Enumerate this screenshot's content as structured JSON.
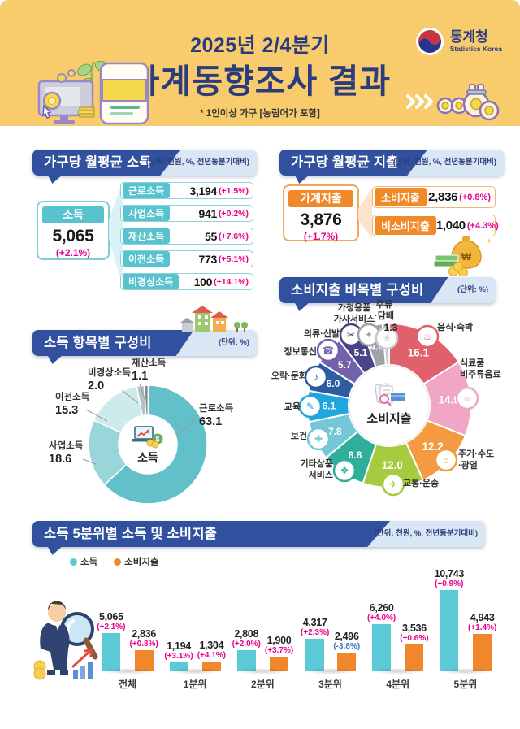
{
  "header": {
    "quarter": "2025년 2/4분기",
    "title": "가계동향조사 결과",
    "note": "* 1인이상 가구 [농림어가 포함]",
    "agency_name": "통계청",
    "agency_name_en": "Statistics Korea"
  },
  "income_section": {
    "title": "가구당 월평균 소득",
    "unit": "(단위: 천원, %, 전년동분기대비)",
    "total": {
      "label": "소득",
      "value": "5,065",
      "change": "(+2.1%)"
    },
    "items": [
      {
        "label": "근로소득",
        "value": "3,194",
        "change": "(+1.5%)"
      },
      {
        "label": "사업소득",
        "value": "941",
        "change": "(+0.2%)"
      },
      {
        "label": "재산소득",
        "value": "55",
        "change": "(+7.6%)"
      },
      {
        "label": "이전소득",
        "value": "773",
        "change": "(+5.1%)"
      },
      {
        "label": "비경상소득",
        "value": "100",
        "change": "(+14.1%)"
      }
    ]
  },
  "expenditure_section": {
    "title": "가구당 월평균 지출",
    "unit": "(단위: 천원, %, 전년동분기대비)",
    "total": {
      "label": "가계지출",
      "value": "3,876",
      "change": "(+1.7%)"
    },
    "items": [
      {
        "label": "소비지출",
        "value": "2,836",
        "change": "(+0.8%)"
      },
      {
        "label": "비소비지출",
        "value": "1,040",
        "change": "(+4.3%)"
      }
    ]
  },
  "chart_data": [
    {
      "id": "income-composition",
      "type": "pie",
      "title": "소득 항목별 구성비",
      "unit": "(단위: %)",
      "center_label": "소득",
      "categories": [
        "근로소득",
        "사업소득",
        "이전소득",
        "비경상소득",
        "재산소득"
      ],
      "values": [
        63.1,
        18.6,
        15.3,
        2.0,
        1.1
      ],
      "colors": [
        "#62C0CA",
        "#99D6DA",
        "#CDEBEC",
        "#B9BFC6",
        "#848B93"
      ],
      "legend_position": "labels-outside"
    },
    {
      "id": "expenditure-composition",
      "type": "pie",
      "title": "소비지출 비목별 구성비",
      "unit": "(단위: %)",
      "center_label": "소비지출",
      "categories": [
        "음식·숙박",
        "식료품·비주류음료",
        "주거·수도·광열",
        "교통·운송",
        "기타상품·서비스",
        "보건",
        "교육",
        "오락·문화",
        "정보통신",
        "의류·신발",
        "가정용품·가사서비스",
        "주류·담배"
      ],
      "label_lines": [
        [
          "음식·숙박"
        ],
        [
          "식료품",
          "비주류음료"
        ],
        [
          "주거·수도",
          "·광열"
        ],
        [
          "교통·운송"
        ],
        [
          "기타상품",
          "서비스"
        ],
        [
          "보건"
        ],
        [
          "교육"
        ],
        [
          "오락·문화"
        ],
        [
          "정보통신"
        ],
        [
          "의류·신발"
        ],
        [
          "가정용품",
          "가사서비스"
        ],
        [
          "주류",
          "·담배"
        ]
      ],
      "values": [
        16.1,
        14.9,
        12.2,
        12.0,
        8.8,
        7.8,
        6.1,
        6.0,
        5.7,
        5.1,
        4.0,
        1.3
      ],
      "colors": [
        "#E0606B",
        "#F2A6C6",
        "#F49B42",
        "#A7CB3F",
        "#2FAE9B",
        "#74C7D6",
        "#1FA6DE",
        "#2D5CA0",
        "#7262AB",
        "#4A4489",
        "#9EA2A9",
        "#C8CACE"
      ],
      "icon_names": [
        "restaurant-icon",
        "grocery-icon",
        "house-icon",
        "car-icon",
        "shopping-icon",
        "health-icon",
        "education-icon",
        "entertainment-icon",
        "telecom-icon",
        "clothing-icon",
        "household-icon",
        "liquor-icon"
      ],
      "icon_glyphs": [
        "♨",
        "☕",
        "⌂",
        "✈",
        "❖",
        "✚",
        "✎",
        "♪",
        "☎",
        "✂",
        "✦",
        "✳"
      ],
      "legend_position": "labels-outside"
    },
    {
      "id": "quintile-income-expenditure",
      "type": "bar",
      "title": "소득 5분위별 소득 및 소비지출",
      "unit": "(단위: 천원, %, 전년동분기대비)",
      "categories": [
        "전체",
        "1분위",
        "2분위",
        "3분위",
        "4분위",
        "5분위"
      ],
      "series": [
        {
          "name": "소득",
          "color": "#5CC9D6",
          "values": [
            5065,
            1194,
            2808,
            4317,
            6260,
            10743
          ],
          "labels": [
            "5,065",
            "1,194",
            "2,808",
            "4,317",
            "6,260",
            "10,743"
          ],
          "changes": [
            "(+2.1%)",
            "(+3.1%)",
            "(+2.0%)",
            "(+2.3%)",
            "(+4.0%)",
            "(+0.9%)"
          ]
        },
        {
          "name": "소비지출",
          "color": "#F0872B",
          "values": [
            2836,
            1304,
            1900,
            2496,
            3536,
            4943
          ],
          "labels": [
            "2,836",
            "1,304",
            "1,900",
            "2,496",
            "3,536",
            "4,943"
          ],
          "changes": [
            "(+0.8%)",
            "(+4.1%)",
            "(+3.7%)",
            "(-3.8%)",
            "(+0.6%)",
            "(+1.4%)"
          ]
        }
      ],
      "ylim": [
        0,
        10743
      ],
      "legend_position": "top-left"
    }
  ],
  "colors": {
    "header_band": "#F8CC6C",
    "title_navy": "#2B3C7E",
    "ribbon_navy": "#31519E",
    "ribbon_light": "#D9E6F4",
    "teal": "#56C3CE",
    "teal_light": "#D9F2F5",
    "orange": "#F08A28",
    "orange_light": "#FBE4CB",
    "positive_change": "#EB008B",
    "negative_change": "#3577C0"
  }
}
